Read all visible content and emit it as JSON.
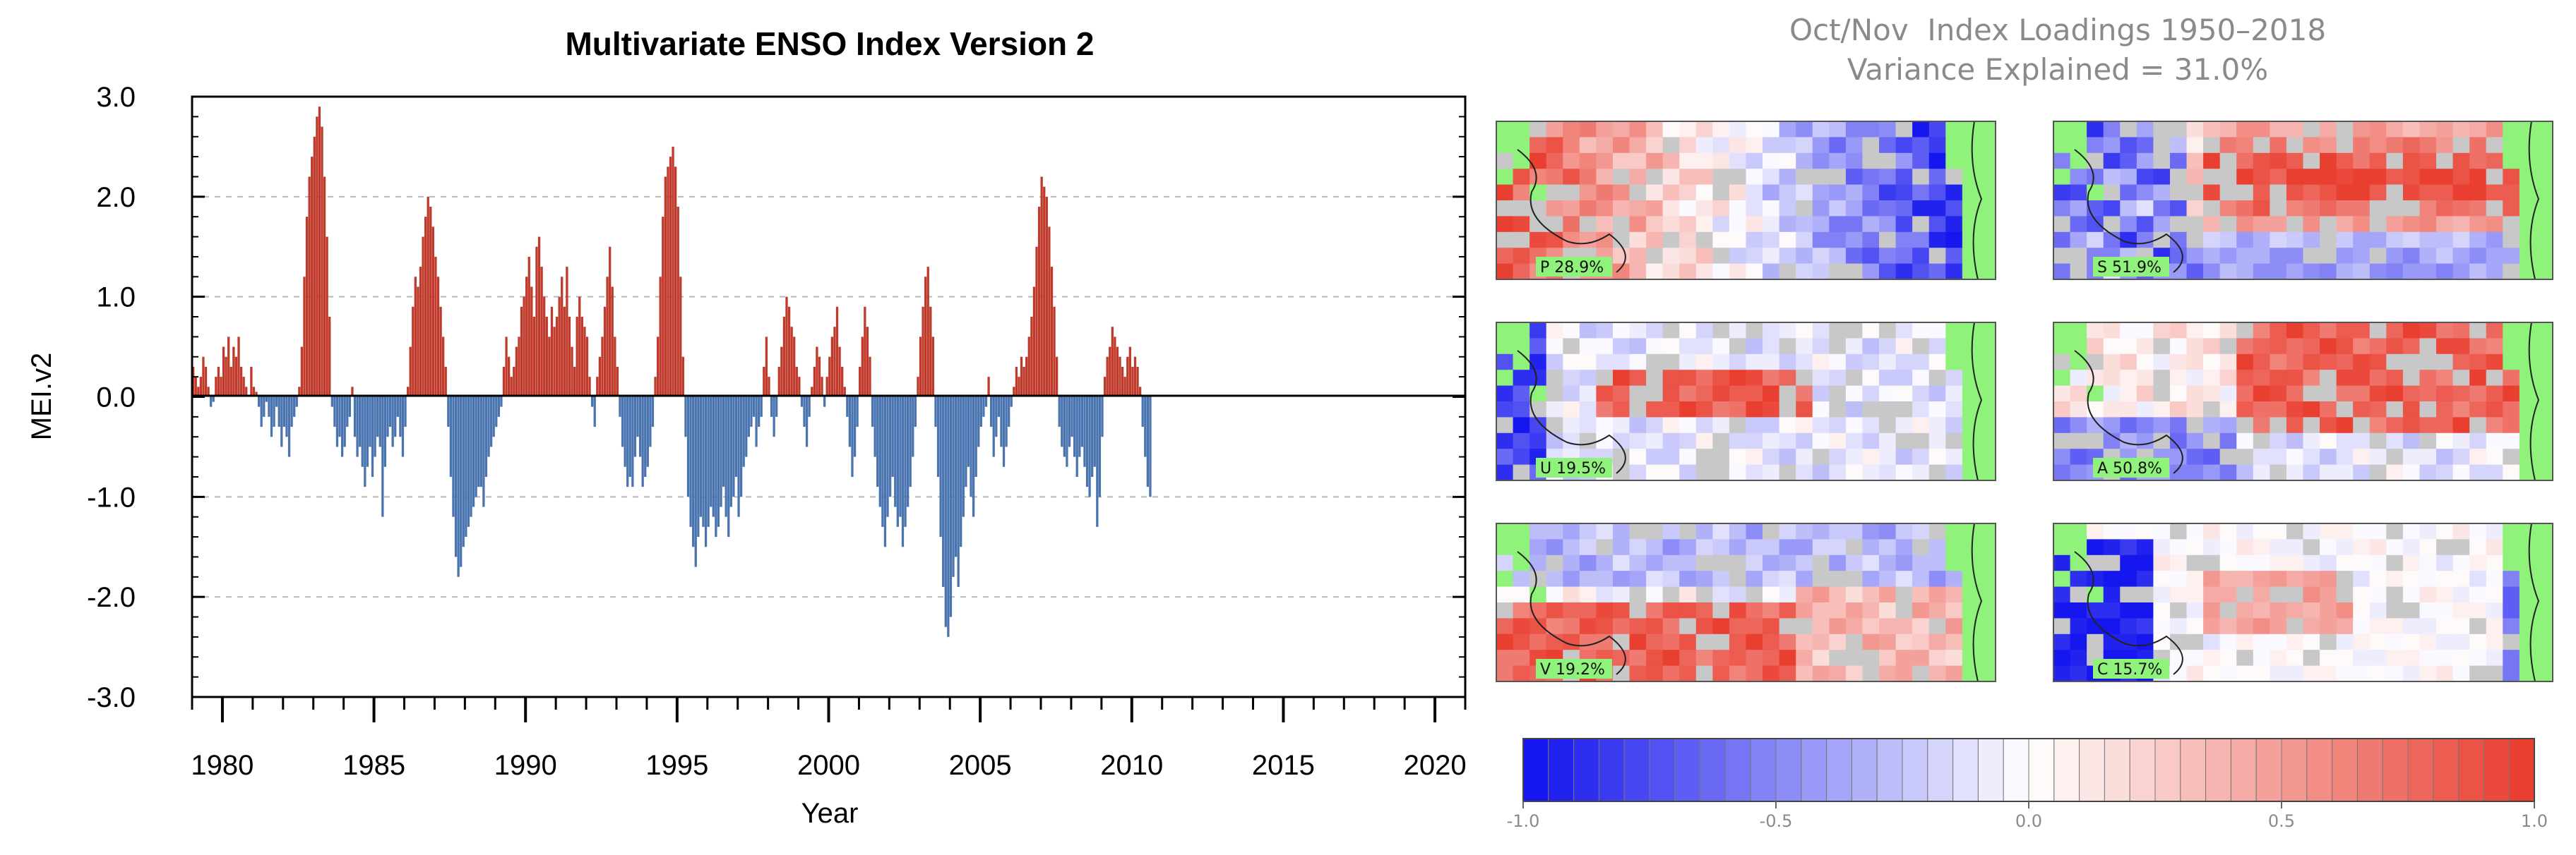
{
  "chart_data": [
    {
      "type": "bar",
      "title": "Multivariate ENSO Index Version 2",
      "xlabel": "Year",
      "ylabel": "MEI.v2",
      "xlim": [
        1979,
        2021
      ],
      "ylim": [
        -3.0,
        3.0
      ],
      "yticks": [
        "-3.0",
        "-2.0",
        "-1.0",
        "0.0",
        "1.0",
        "2.0",
        "3.0"
      ],
      "xticks": [
        "1980",
        "1985",
        "1990",
        "1995",
        "2000",
        "2005",
        "2010",
        "2015",
        "2020"
      ],
      "grid": "horizontal dashed",
      "positive_color": "#c03a2b",
      "negative_color": "#4a74b0",
      "series_x_start": 1979.0,
      "series_step": 0.0833,
      "values": [
        0.3,
        0.2,
        0.1,
        0.2,
        0.4,
        0.3,
        0.1,
        -0.1,
        -0.05,
        0.2,
        0.3,
        0.2,
        0.5,
        0.4,
        0.6,
        0.3,
        0.5,
        0.4,
        0.6,
        0.3,
        0.2,
        0.1,
        0.0,
        0.3,
        0.1,
        0.05,
        -0.1,
        -0.3,
        -0.2,
        -0.05,
        -0.2,
        -0.4,
        -0.3,
        -0.1,
        -0.3,
        -0.5,
        -0.3,
        -0.4,
        -0.6,
        -0.3,
        -0.2,
        -0.1,
        0.1,
        0.5,
        1.2,
        1.8,
        2.2,
        2.4,
        2.6,
        2.8,
        2.9,
        2.7,
        2.2,
        1.6,
        0.8,
        -0.1,
        -0.3,
        -0.5,
        -0.4,
        -0.6,
        -0.5,
        -0.3,
        -0.2,
        0.1,
        -0.4,
        -0.6,
        -0.5,
        -0.7,
        -0.9,
        -0.7,
        -0.5,
        -0.8,
        -0.6,
        -0.4,
        -0.5,
        -1.2,
        -0.7,
        -0.4,
        -0.3,
        -0.5,
        -0.4,
        -0.2,
        -0.4,
        -0.6,
        -0.3,
        0.1,
        0.5,
        0.9,
        1.2,
        1.1,
        1.3,
        1.6,
        1.8,
        2.0,
        1.9,
        1.7,
        1.4,
        1.2,
        0.9,
        0.6,
        0.3,
        -0.3,
        -0.8,
        -1.2,
        -1.6,
        -1.8,
        -1.7,
        -1.5,
        -1.4,
        -1.3,
        -1.2,
        -1.1,
        -1.0,
        -0.9,
        -0.9,
        -1.1,
        -0.8,
        -0.6,
        -0.5,
        -0.4,
        -0.3,
        -0.2,
        -0.1,
        0.3,
        0.6,
        0.4,
        0.2,
        0.3,
        0.5,
        0.6,
        0.9,
        1.0,
        1.2,
        1.4,
        1.1,
        0.8,
        1.5,
        1.6,
        1.3,
        1.0,
        0.8,
        0.6,
        0.9,
        0.7,
        0.8,
        1.0,
        1.2,
        0.9,
        1.3,
        0.8,
        0.5,
        0.3,
        0.8,
        1.0,
        0.8,
        0.7,
        0.6,
        0.2,
        -0.1,
        -0.3,
        0.2,
        0.4,
        0.6,
        0.9,
        1.2,
        1.5,
        1.1,
        0.6,
        0.3,
        -0.2,
        -0.5,
        -0.7,
        -0.9,
        -0.8,
        -0.9,
        -0.6,
        -0.4,
        -0.6,
        -0.9,
        -0.8,
        -0.7,
        -0.5,
        -0.3,
        0.2,
        0.6,
        1.2,
        1.8,
        2.2,
        2.3,
        2.4,
        2.5,
        2.3,
        1.9,
        1.2,
        0.4,
        -0.4,
        -1.0,
        -1.3,
        -1.5,
        -1.7,
        -1.4,
        -1.2,
        -1.3,
        -1.5,
        -1.3,
        -1.1,
        -1.2,
        -1.4,
        -1.3,
        -1.1,
        -0.9,
        -1.2,
        -1.4,
        -1.1,
        -1.0,
        -0.8,
        -1.2,
        -1.0,
        -0.7,
        -0.6,
        -0.4,
        -0.3,
        -0.2,
        -0.5,
        -0.3,
        -0.2,
        0.3,
        0.6,
        0.2,
        -0.2,
        -0.4,
        -0.2,
        0.3,
        0.5,
        0.8,
        1.0,
        0.9,
        0.7,
        0.6,
        0.3,
        0.2,
        -0.1,
        -0.3,
        -0.5,
        -0.2,
        0.1,
        0.3,
        0.5,
        0.4,
        0.2,
        -0.1,
        0.2,
        0.4,
        0.6,
        0.7,
        0.9,
        0.5,
        0.3,
        0.1,
        -0.2,
        -0.5,
        -0.8,
        -0.6,
        -0.3,
        0.3,
        0.6,
        0.9,
        0.7,
        0.4,
        -0.3,
        -0.6,
        -0.9,
        -1.1,
        -1.3,
        -1.5,
        -1.2,
        -1.0,
        -0.8,
        -1.1,
        -1.3,
        -1.2,
        -1.5,
        -1.3,
        -1.1,
        -0.9,
        -0.6,
        -0.3,
        0.2,
        0.6,
        0.9,
        1.2,
        1.3,
        0.9,
        0.6,
        -0.3,
        -0.8,
        -1.4,
        -1.9,
        -2.3,
        -2.4,
        -2.2,
        -1.8,
        -1.6,
        -1.9,
        -1.5,
        -1.2,
        -0.9,
        -0.7,
        -1.0,
        -1.2,
        -0.8,
        -0.5,
        -0.3,
        -0.2,
        -0.1,
        0.2,
        -0.3,
        -0.6,
        -0.4,
        -0.2,
        -0.5,
        -0.7,
        -0.5,
        -0.3,
        -0.1,
        0.1,
        0.3,
        0.2,
        0.4,
        0.3,
        0.4,
        0.6,
        0.8,
        1.1,
        1.5,
        1.9,
        2.2,
        2.1,
        2.0,
        1.7,
        1.3,
        0.9,
        0.4,
        -0.3,
        -0.5,
        -0.6,
        -0.7,
        -0.5,
        -0.4,
        -0.6,
        -0.8,
        -0.6,
        -0.5,
        -0.7,
        -0.9,
        -1.0,
        -0.8,
        -0.7,
        -1.3,
        -1.0,
        -0.4,
        0.2,
        0.4,
        0.5,
        0.7,
        0.6,
        0.5,
        0.4,
        0.3,
        0.2,
        0.4,
        0.5,
        0.3,
        0.4,
        0.3,
        0.1,
        -0.3,
        -0.6,
        -0.9,
        -1.0
      ]
    },
    {
      "type": "heatmap",
      "title": "Oct/Nov  Index Loadings 1950–2018",
      "subtitle": "Variance Explained = 31.0%",
      "panels": [
        {
          "label": "P 28.9%",
          "var": "P"
        },
        {
          "label": "S 51.9%",
          "var": "S"
        },
        {
          "label": "U 19.5%",
          "var": "U"
        },
        {
          "label": "A 50.8%",
          "var": "A"
        },
        {
          "label": "V 19.2%",
          "var": "V"
        },
        {
          "label": "C 15.7%",
          "var": "C"
        }
      ],
      "colorbar": {
        "min": -1.0,
        "max": 1.0,
        "ticks": [
          "-1.0",
          "-0.5",
          "0.0",
          "0.5",
          "1.0"
        ],
        "low_color": "#1010ee",
        "mid_color": "#ffffff",
        "high_color": "#e83a2c"
      },
      "land_color": "#8ff27a",
      "missing_color": "#c8c8c8"
    }
  ]
}
